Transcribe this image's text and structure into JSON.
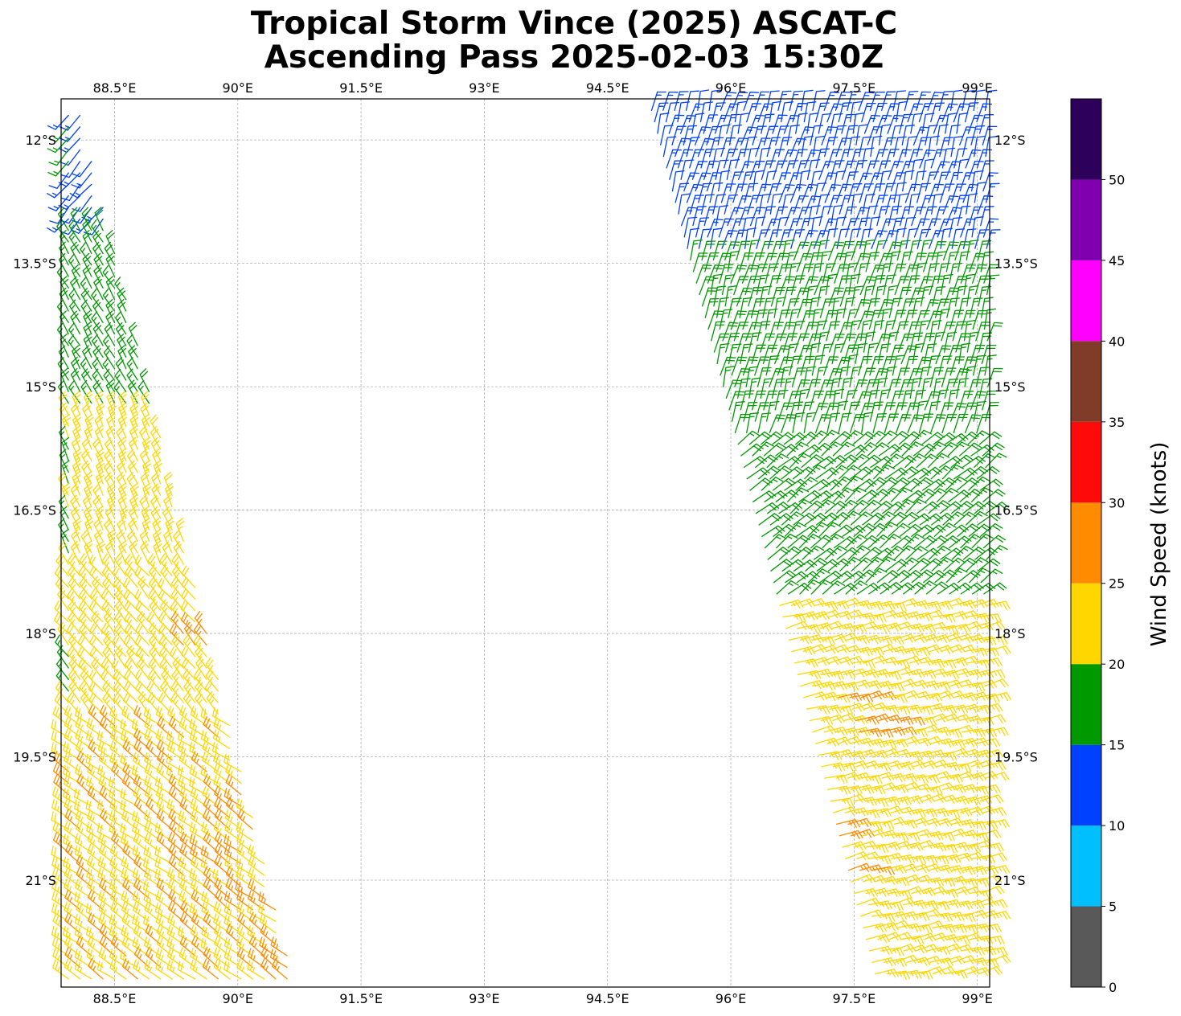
{
  "chart_data": {
    "type": "scatter",
    "mark": "wind-barb",
    "title_line1": "Tropical Storm Vince (2025) ASCAT-C",
    "title_line2": "Ascending Pass 2025-02-03 15:30Z",
    "lon_range": [
      87.85,
      99.15
    ],
    "lat_range": [
      -22.3,
      -11.5
    ],
    "lon_ticks": [
      88.5,
      90,
      91.5,
      93,
      94.5,
      96,
      97.5,
      99
    ],
    "lon_tick_labels": [
      "88.5°E",
      "90°E",
      "91.5°E",
      "93°E",
      "94.5°E",
      "96°E",
      "97.5°E",
      "99°E"
    ],
    "lat_ticks": [
      -12,
      -13.5,
      -15,
      -16.5,
      -18,
      -19.5,
      -21
    ],
    "lat_tick_labels": [
      "12°S",
      "13.5°S",
      "15°S",
      "16.5°S",
      "18°S",
      "19.5°S",
      "21°S"
    ],
    "grid": true,
    "colorbar": {
      "label": "Wind Speed (knots)",
      "bounds": [
        0,
        5,
        10,
        15,
        20,
        25,
        30,
        35,
        40,
        45,
        50,
        55
      ],
      "tick_values": [
        0,
        5,
        10,
        15,
        20,
        25,
        30,
        35,
        40,
        45,
        50
      ],
      "tick_labels": [
        "0",
        "5",
        "10",
        "15",
        "20",
        "25",
        "30",
        "35",
        "40",
        "45",
        "50"
      ],
      "colors": [
        "#595959",
        "#00bfff",
        "#0040ff",
        "#009900",
        "#ffd700",
        "#ff8c00",
        "#ff0a0a",
        "#803c28",
        "#ff00ff",
        "#8000b0",
        "#2d005a"
      ]
    },
    "swaths": [
      {
        "name": "west",
        "rows": [
          -11.7,
          -22.3
        ],
        "left_edge_lon": [
          87.8,
          87.8
        ],
        "right_edge_lon": [
          88.1,
          90.7
        ],
        "spacing_deg": 0.14,
        "wind_regions": [
          {
            "lat": [
              -11.6,
              -13.0
            ],
            "speed": 13,
            "dir_deg": 220
          },
          {
            "lat": [
              -13.0,
              -15.3
            ],
            "speed": 18,
            "dir_deg": 330
          },
          {
            "lat": [
              -15.3,
              -17.2
            ],
            "speed": 22,
            "dir_deg": 335
          },
          {
            "lat": [
              -17.2,
              -19.0
            ],
            "speed": 23,
            "dir_deg": 320
          },
          {
            "lat": [
              -19.0,
              -22.3
            ],
            "speed": 24,
            "dir_deg": 305
          }
        ],
        "orange_spots": [
          [
            -18.1,
            89.6
          ],
          [
            -20.1,
            90.1
          ],
          [
            -20.7,
            89.8
          ],
          [
            -21.3,
            90.3
          ],
          [
            -22.0,
            90.5
          ]
        ],
        "green_spots_lat": [
          -12.0,
          -13.4,
          -14.5,
          -16.0,
          -16.8,
          -18.5
        ]
      },
      {
        "name": "east",
        "rows": [
          -11.5,
          -22.3
        ],
        "left_edge_lon": [
          95.0,
          97.8
        ],
        "right_edge_lon": [
          99.15,
          99.15
        ],
        "spacing_deg": 0.14,
        "wind_regions": [
          {
            "lat": [
              -11.5,
              -13.4
            ],
            "speed": 13,
            "dir_deg": 15
          },
          {
            "lat": [
              -13.4,
              -15.6
            ],
            "speed": 18,
            "dir_deg": 15
          },
          {
            "lat": [
              -15.6,
              -17.6
            ],
            "speed": 18,
            "dir_deg": 50
          },
          {
            "lat": [
              -17.6,
              -22.3
            ],
            "speed": 23,
            "dir_deg": 75
          }
        ],
        "orange_spots": [
          [
            -18.8,
            97.5
          ],
          [
            -19.1,
            97.8
          ],
          [
            -20.4,
            97.2
          ],
          [
            -20.9,
            97.5
          ]
        ]
      }
    ]
  }
}
